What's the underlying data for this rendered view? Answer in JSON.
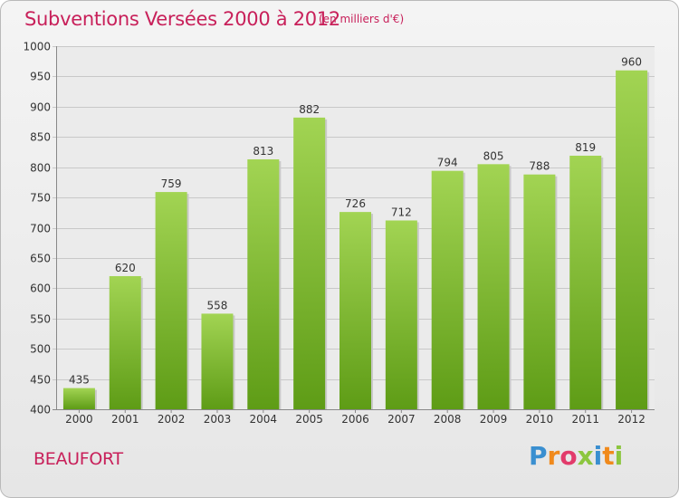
{
  "header": {
    "title": "Subventions Versées 2000 à 2012",
    "subtitle": "(en milliers d'€)"
  },
  "footer": {
    "commune": "BEAUFORT",
    "logo_text": "Proxiti"
  },
  "colors": {
    "title": "#c8205a",
    "bar_light": "#a2d453",
    "bar_dark": "#5e9c16",
    "logo": [
      "#3a8fd0",
      "#f08a1c",
      "#e23b6b",
      "#8cc63f",
      "#3a8fd0",
      "#f08a1c",
      "#8cc63f"
    ]
  },
  "chart_data": {
    "type": "bar",
    "title": "Subventions Versées 2000 à 2012",
    "subtitle": "(en milliers d'€)",
    "xlabel": "",
    "ylabel": "",
    "categories": [
      "2000",
      "2001",
      "2002",
      "2003",
      "2004",
      "2005",
      "2006",
      "2007",
      "2008",
      "2009",
      "2010",
      "2011",
      "2012"
    ],
    "values": [
      435,
      620,
      759,
      558,
      813,
      882,
      726,
      712,
      794,
      805,
      788,
      819,
      960
    ],
    "data_labels": [
      "435",
      "620",
      "759",
      "558",
      "813",
      "882",
      "726",
      "712",
      "794",
      "805",
      "788",
      "819",
      "960"
    ],
    "ylim": [
      400,
      1000
    ],
    "yticks": [
      400,
      450,
      500,
      550,
      600,
      650,
      700,
      750,
      800,
      850,
      900,
      950,
      1000
    ],
    "ytick_labels": [
      "400",
      "450",
      "500",
      "550",
      "600",
      "650",
      "700",
      "750",
      "800",
      "850",
      "900",
      "950",
      "1000"
    ],
    "grid": true,
    "legend": "none"
  }
}
